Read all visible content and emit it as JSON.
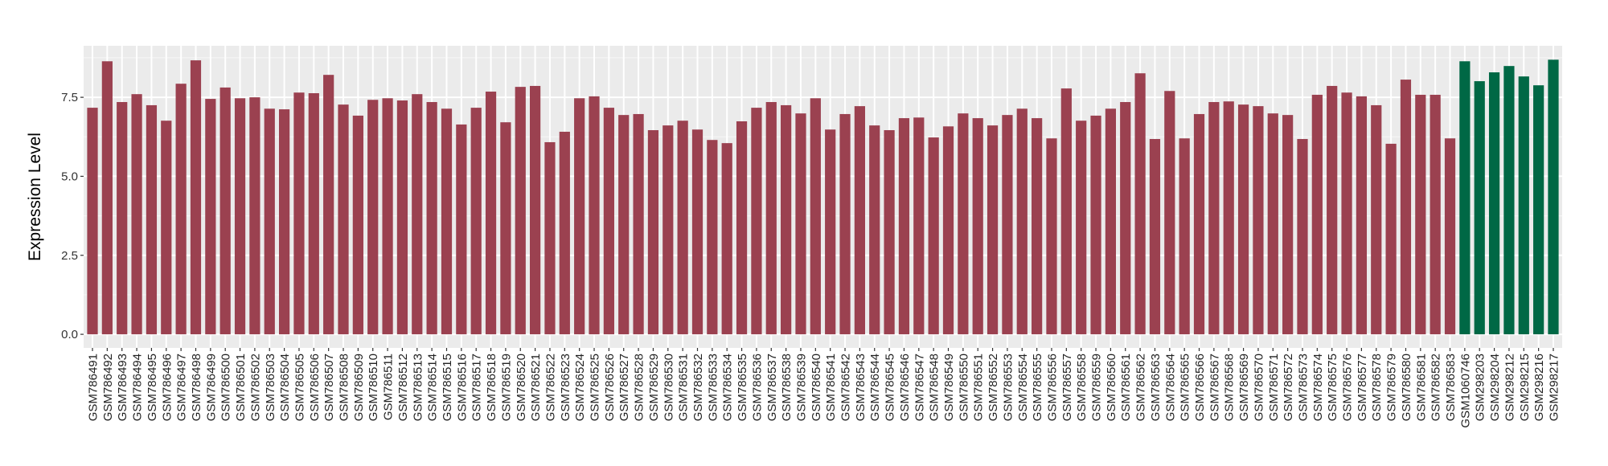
{
  "chart_data": {
    "type": "bar",
    "title": "",
    "xlabel": "",
    "ylabel": "Expression Level",
    "ylim": [
      -0.43,
      9.13
    ],
    "yticks": [
      0.0,
      2.5,
      5.0,
      7.5
    ],
    "ytick_labels": [
      "0.0",
      "2.5",
      "5.0",
      "7.5"
    ],
    "grid": true,
    "legend": "none",
    "colors": {
      "group1": "#9b4150",
      "group2": "#006845",
      "panel": "#ebebeb",
      "grid": "#ffffff"
    },
    "categories": [
      "GSM786491",
      "GSM786492",
      "GSM786493",
      "GSM786494",
      "GSM786495",
      "GSM786496",
      "GSM786497",
      "GSM786498",
      "GSM786499",
      "GSM786500",
      "GSM786501",
      "GSM786502",
      "GSM786503",
      "GSM786504",
      "GSM786505",
      "GSM786506",
      "GSM786507",
      "GSM786508",
      "GSM786509",
      "GSM786510",
      "GSM786511",
      "GSM786512",
      "GSM786513",
      "GSM786514",
      "GSM786515",
      "GSM786516",
      "GSM786517",
      "GSM786518",
      "GSM786519",
      "GSM786520",
      "GSM786521",
      "GSM786522",
      "GSM786523",
      "GSM786524",
      "GSM786525",
      "GSM786526",
      "GSM786527",
      "GSM786528",
      "GSM786529",
      "GSM786530",
      "GSM786531",
      "GSM786532",
      "GSM786533",
      "GSM786534",
      "GSM786535",
      "GSM786536",
      "GSM786537",
      "GSM786538",
      "GSM786539",
      "GSM786540",
      "GSM786541",
      "GSM786542",
      "GSM786543",
      "GSM786544",
      "GSM786545",
      "GSM786546",
      "GSM786547",
      "GSM786548",
      "GSM786549",
      "GSM786550",
      "GSM786551",
      "GSM786552",
      "GSM786553",
      "GSM786554",
      "GSM786555",
      "GSM786556",
      "GSM786557",
      "GSM786558",
      "GSM786559",
      "GSM786560",
      "GSM786561",
      "GSM786562",
      "GSM786563",
      "GSM786564",
      "GSM786565",
      "GSM786566",
      "GSM786567",
      "GSM786568",
      "GSM786569",
      "GSM786570",
      "GSM786571",
      "GSM786572",
      "GSM786573",
      "GSM786574",
      "GSM786575",
      "GSM786576",
      "GSM786577",
      "GSM786578",
      "GSM786579",
      "GSM786580",
      "GSM786581",
      "GSM786582",
      "GSM786583",
      "GSM1060746",
      "GSM298203",
      "GSM298204",
      "GSM298212",
      "GSM298215",
      "GSM298216",
      "GSM298217"
    ],
    "values": [
      7.17,
      8.64,
      7.35,
      7.6,
      7.25,
      6.76,
      7.93,
      8.67,
      7.45,
      7.81,
      7.47,
      7.5,
      7.14,
      7.12,
      7.65,
      7.63,
      8.21,
      7.27,
      6.92,
      7.42,
      7.47,
      7.4,
      7.6,
      7.35,
      7.14,
      6.64,
      7.17,
      7.68,
      6.71,
      7.83,
      7.86,
      6.08,
      6.41,
      7.47,
      7.53,
      7.17,
      6.94,
      6.97,
      6.46,
      6.61,
      6.76,
      6.48,
      6.15,
      6.05,
      6.74,
      7.17,
      7.35,
      7.25,
      6.99,
      7.47,
      6.48,
      6.97,
      7.22,
      6.61,
      6.46,
      6.84,
      6.86,
      6.23,
      6.58,
      6.99,
      6.84,
      6.61,
      6.94,
      7.14,
      6.84,
      6.2,
      7.78,
      6.76,
      6.92,
      7.14,
      7.35,
      8.26,
      6.18,
      7.7,
      6.2,
      6.97,
      7.35,
      7.37,
      7.27,
      7.22,
      6.99,
      6.94,
      6.18,
      7.58,
      7.86,
      7.65,
      7.53,
      7.25,
      6.03,
      8.06,
      7.58,
      7.58,
      6.2,
      8.64,
      8.01,
      8.29,
      8.49,
      8.16,
      7.88,
      8.69
    ],
    "groups": [
      1,
      1,
      1,
      1,
      1,
      1,
      1,
      1,
      1,
      1,
      1,
      1,
      1,
      1,
      1,
      1,
      1,
      1,
      1,
      1,
      1,
      1,
      1,
      1,
      1,
      1,
      1,
      1,
      1,
      1,
      1,
      1,
      1,
      1,
      1,
      1,
      1,
      1,
      1,
      1,
      1,
      1,
      1,
      1,
      1,
      1,
      1,
      1,
      1,
      1,
      1,
      1,
      1,
      1,
      1,
      1,
      1,
      1,
      1,
      1,
      1,
      1,
      1,
      1,
      1,
      1,
      1,
      1,
      1,
      1,
      1,
      1,
      1,
      1,
      1,
      1,
      1,
      1,
      1,
      1,
      1,
      1,
      1,
      1,
      1,
      1,
      1,
      1,
      1,
      1,
      1,
      1,
      1,
      2,
      2,
      2,
      2,
      2,
      2,
      2
    ]
  }
}
